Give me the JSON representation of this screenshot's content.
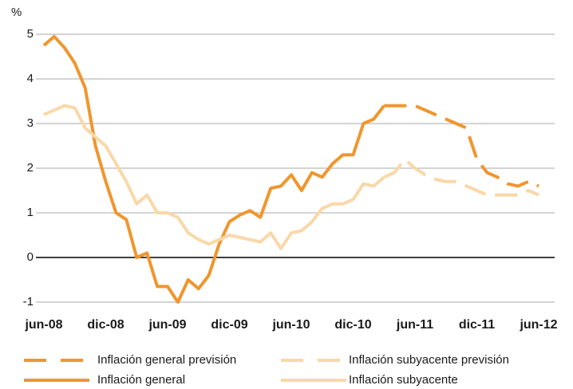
{
  "chart_data": {
    "type": "line",
    "y_label": "%",
    "categories": [
      "jun-08",
      null,
      null,
      null,
      null,
      null,
      "dic-08",
      null,
      null,
      null,
      null,
      null,
      "jun-09",
      null,
      null,
      null,
      null,
      null,
      "dic-09",
      null,
      null,
      null,
      null,
      null,
      "jun-10",
      null,
      null,
      null,
      null,
      null,
      "dic-10",
      null,
      null,
      null,
      null,
      null,
      "jun-11",
      null,
      null,
      null,
      null,
      null,
      "dic-11",
      null,
      null,
      null,
      null,
      null,
      "jun-12"
    ],
    "series": [
      {
        "name": "Inflación general previsión",
        "color": "#f0962d",
        "dashed": true,
        "values": [
          null,
          null,
          null,
          null,
          null,
          null,
          null,
          null,
          null,
          null,
          null,
          null,
          null,
          null,
          null,
          null,
          null,
          null,
          null,
          null,
          null,
          null,
          null,
          null,
          null,
          null,
          null,
          null,
          null,
          null,
          null,
          null,
          null,
          3.4,
          3.4,
          3.4,
          3.4,
          3.3,
          3.2,
          3.1,
          3.0,
          2.9,
          2.2,
          1.9,
          1.8,
          1.65,
          1.6,
          1.7,
          1.6
        ]
      },
      {
        "name": "Inflación subyacente previsión",
        "color": "#f9d8a8",
        "dashed": true,
        "values": [
          null,
          null,
          null,
          null,
          null,
          null,
          null,
          null,
          null,
          null,
          null,
          null,
          null,
          null,
          null,
          null,
          null,
          null,
          null,
          null,
          null,
          null,
          null,
          null,
          null,
          null,
          null,
          null,
          null,
          null,
          null,
          null,
          null,
          1.8,
          1.9,
          2.2,
          2.0,
          1.85,
          1.75,
          1.7,
          1.7,
          1.6,
          1.5,
          1.4,
          1.4,
          1.4,
          1.4,
          1.5,
          1.4
        ]
      },
      {
        "name": "Inflación general",
        "color": "#f0962d",
        "dashed": false,
        "values": [
          4.75,
          4.95,
          4.7,
          4.35,
          3.8,
          2.5,
          1.7,
          1.0,
          0.85,
          0.0,
          0.1,
          -0.65,
          -0.65,
          -1.0,
          -0.5,
          -0.7,
          -0.4,
          0.3,
          0.8,
          0.95,
          1.05,
          0.9,
          1.55,
          1.6,
          1.85,
          1.5,
          1.9,
          1.8,
          2.1,
          2.3,
          2.3,
          3.0,
          3.1,
          3.4,
          null,
          null,
          null,
          null,
          null,
          null,
          null,
          null,
          null,
          null,
          null,
          null,
          null,
          null,
          null
        ]
      },
      {
        "name": "Inflación subyacente",
        "color": "#f9d8a8",
        "dashed": false,
        "values": [
          3.2,
          3.3,
          3.4,
          3.35,
          2.9,
          2.7,
          2.5,
          2.1,
          1.7,
          1.2,
          1.4,
          1.0,
          1.0,
          0.9,
          0.55,
          0.4,
          0.3,
          0.4,
          0.5,
          0.45,
          0.4,
          0.35,
          0.55,
          0.2,
          0.55,
          0.6,
          0.8,
          1.1,
          1.2,
          1.2,
          1.3,
          1.65,
          1.6,
          1.8,
          null,
          null,
          null,
          null,
          null,
          null,
          null,
          null,
          null,
          null,
          null,
          null,
          null,
          null,
          null
        ]
      }
    ],
    "ylim": [
      -1,
      5
    ],
    "yticks": [
      -1,
      0,
      1,
      2,
      3,
      4,
      5
    ],
    "grid": true
  }
}
